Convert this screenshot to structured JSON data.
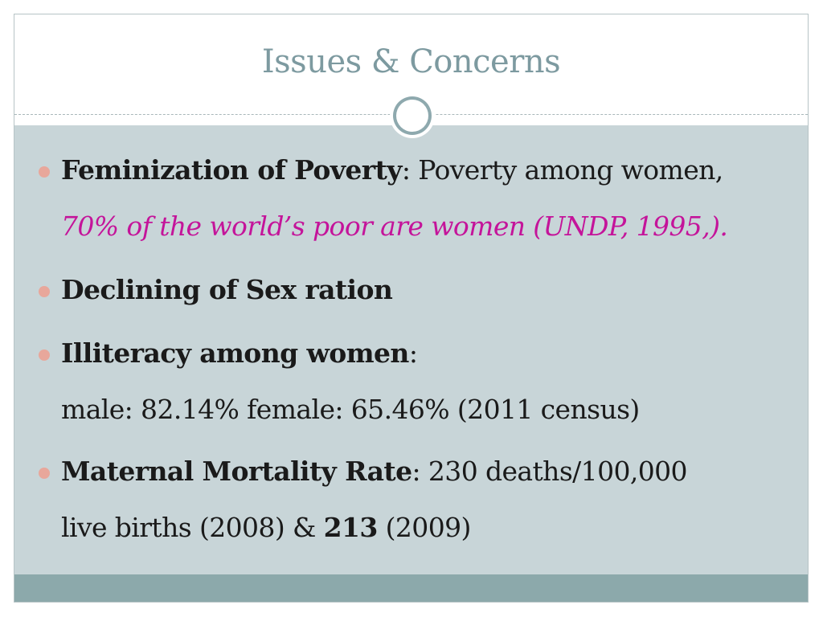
{
  "slide": {
    "title": "Issues & Concerns",
    "items": [
      {
        "term": "Feminization of Poverty",
        "separator": ":",
        "text": " Poverty among women,",
        "continuation": "70% of the world’s poor are women (UNDP, 1995,)."
      },
      {
        "term": "Declining of Sex ration"
      },
      {
        "term": "Illiteracy among women",
        "separator": ":",
        "continuation": "male: 82.14% female: 65.46% (2011 census)"
      },
      {
        "term": "Maternal Mortality Rate",
        "separator": ":",
        "text": " 230 deaths/100,000",
        "continuation_pre": "live births (2008) & ",
        "continuation_bold": "213",
        "continuation_post": " (2009)"
      }
    ]
  },
  "colors": {
    "title": "#7d9aa0",
    "content_bg": "#c8d5d8",
    "footer": "#8ca9ab",
    "bullet": "#e8a79b",
    "highlight": "#c4149a"
  }
}
